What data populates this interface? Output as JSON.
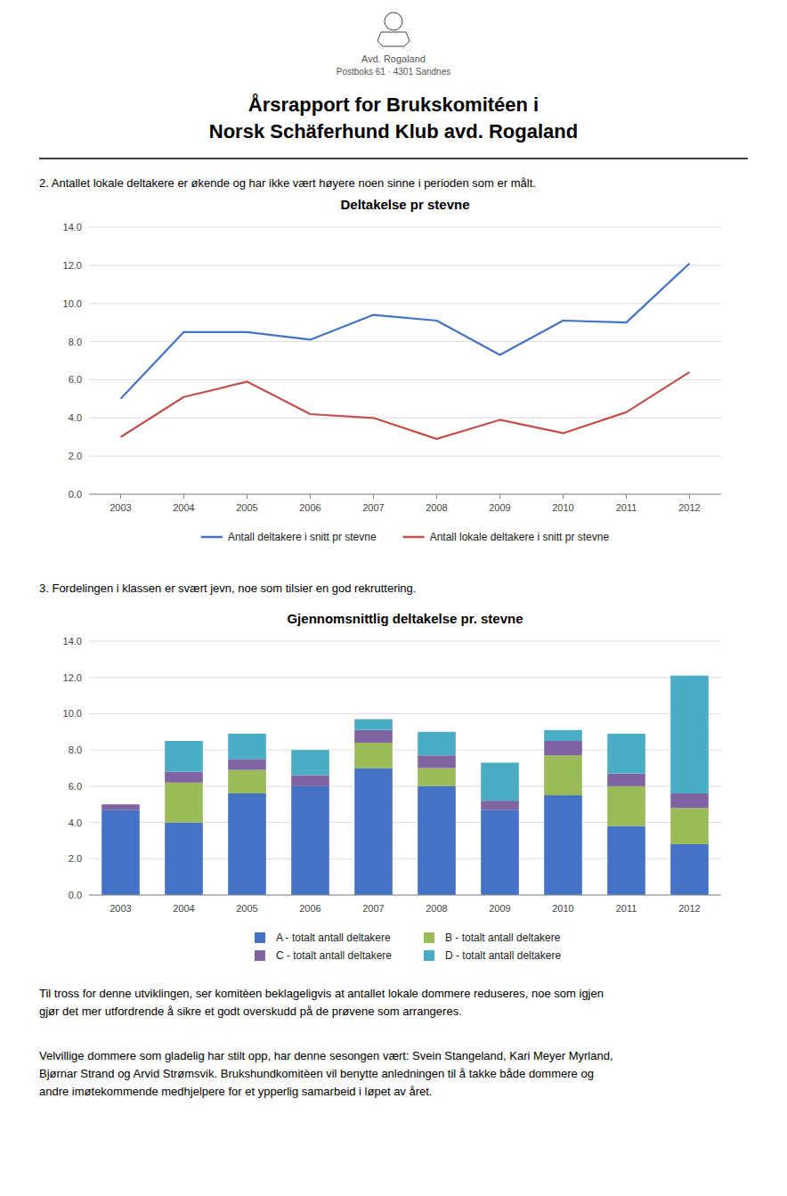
{
  "logo_lines": [
    "Avd. Rogaland",
    "Postboks 61 · 4301 Sandnes"
  ],
  "title_lines": [
    "Årsrapport for Brukskomitéen i",
    "Norsk Schäferhund Klub avd. Rogaland"
  ],
  "section2_text": "2.   Antallet lokale deltakere er økende og har ikke vært høyere noen sinne i perioden som er målt.",
  "section3_text": "3.   Fordelingen i klassen er svært jevn, noe som tilsier en god rekruttering.",
  "body_text1": [
    "Til tross for denne utviklingen, ser komitèen beklageligvis at antallet lokale dommere reduseres, noe som igjen",
    "gjør det mer utfordrende å sikre et godt overskudd på de prøvene som arrangeres."
  ],
  "body_text2": [
    "Velvillige dommere som gladelig har stilt opp, har denne sesongen vært: Svein Stangeland, Kari Meyer Myrland,",
    "Bjørnar Strand og Arvid Strømsvik. Brukshundkomitèen vil benytte anledningen til å takke både dommere og",
    "andre imøtekommende medhjelpere for et ypperlig samarbeid i løpet av året."
  ],
  "chart_data": [
    {
      "type": "line",
      "title": "Deltakelse pr stevne",
      "x": [
        2003,
        2004,
        2005,
        2006,
        2007,
        2008,
        2009,
        2010,
        2011,
        2012
      ],
      "series": [
        {
          "name": "Antall deltakere i snitt pr stevne",
          "color": "#4472C4",
          "values": [
            5.0,
            8.5,
            8.5,
            8.1,
            9.4,
            9.1,
            7.3,
            9.1,
            9.0,
            12.1
          ]
        },
        {
          "name": "Antall lokale deltakere i snitt pr stevne",
          "color": "#C0504D",
          "values": [
            3.0,
            5.1,
            5.9,
            4.2,
            4.0,
            2.9,
            3.9,
            3.2,
            4.3,
            6.4
          ]
        }
      ],
      "xlim": [
        2002.5,
        2012.5
      ],
      "xticks": [
        2003,
        2004,
        2005,
        2006,
        2007,
        2008,
        2009,
        2010,
        2011,
        2012
      ],
      "ylim": [
        0,
        14
      ],
      "yticks": [
        {
          "value": 0,
          "label": "0.0"
        },
        {
          "value": 2,
          "label": "2.0"
        },
        {
          "value": 4,
          "label": "4.0"
        },
        {
          "value": 6,
          "label": "6.0"
        },
        {
          "value": 8,
          "label": "8.0"
        },
        {
          "value": 10,
          "label": "10.0"
        },
        {
          "value": 12,
          "label": "12.0"
        },
        {
          "value": 14,
          "label": "14.0"
        }
      ],
      "grid": true,
      "legend": "bottom"
    },
    {
      "type": "bar",
      "stacked": true,
      "title": "Gjennomsnittlig deltakelse pr. stevne",
      "categories": [
        "2003",
        "2004",
        "2005",
        "2006",
        "2007",
        "2008",
        "2009",
        "2010",
        "2011",
        "2012"
      ],
      "series": [
        {
          "name": "A - totalt antall deltakere",
          "color": "#4472C4",
          "values": [
            4.7,
            4.0,
            5.6,
            6.0,
            7.0,
            6.0,
            4.7,
            5.5,
            3.8,
            2.8
          ]
        },
        {
          "name": "B - totalt antall deltakere",
          "color": "#9BBB59",
          "values": [
            0.0,
            2.2,
            1.3,
            0.0,
            1.4,
            1.0,
            0.0,
            2.2,
            2.2,
            2.0
          ]
        },
        {
          "name": "C - totalt antall deltakere",
          "color": "#8064A2",
          "values": [
            0.3,
            0.6,
            0.6,
            0.6,
            0.7,
            0.7,
            0.5,
            0.8,
            0.7,
            0.8
          ]
        },
        {
          "name": "D - totalt antall deltakere",
          "color": "#4BACC6",
          "values": [
            0.0,
            1.7,
            1.4,
            1.4,
            0.6,
            1.3,
            2.1,
            0.6,
            2.2,
            6.5
          ]
        }
      ],
      "ylim": [
        0,
        14
      ],
      "yticks": [
        {
          "value": 0,
          "label": "0.0"
        },
        {
          "value": 2,
          "label": "2.0"
        },
        {
          "value": 4,
          "label": "4.0"
        },
        {
          "value": 6,
          "label": "6.0"
        },
        {
          "value": 8,
          "label": "8.0"
        },
        {
          "value": 10,
          "label": "10.0"
        },
        {
          "value": 12,
          "label": "12.0"
        },
        {
          "value": 14,
          "label": "14.0"
        }
      ],
      "grid": true,
      "legend": "bottom"
    }
  ]
}
